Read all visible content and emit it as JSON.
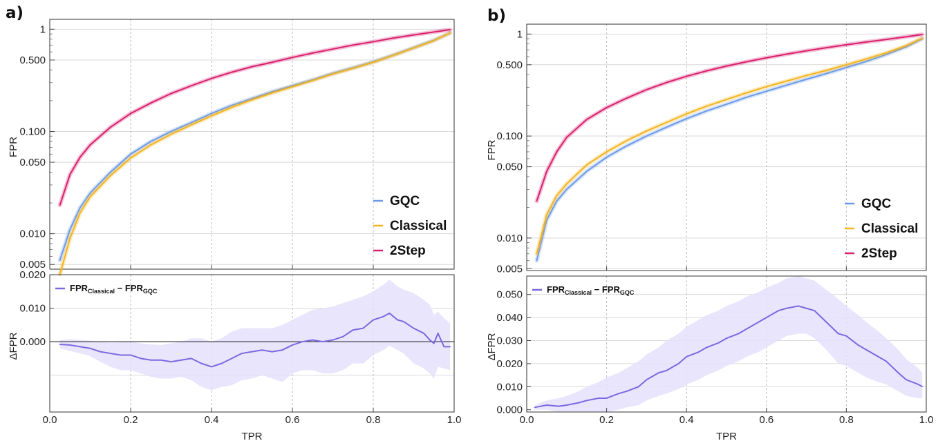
{
  "colors": {
    "gqc": "#6b9be8",
    "classical": "#f5b41e",
    "two_step": "#d9206e",
    "delta": "#7b68e0",
    "delta_band": "#e4e1fb"
  },
  "chart_data": [
    {
      "panel_label": "a)",
      "type": "line",
      "ylabel": "FPR",
      "xlabel": "",
      "xlim": [
        0.0,
        1.0
      ],
      "ylim": [
        0.0045,
        1.25
      ],
      "yscale": "log",
      "yticks": [
        "0.005",
        "0.010",
        "0.050",
        "0.100",
        "0.500",
        "1"
      ],
      "ytick_values": [
        0.005,
        0.01,
        0.05,
        0.1,
        0.5,
        1
      ],
      "grid": true,
      "legend_position": "bottom-right",
      "x": [
        0.025,
        0.05,
        0.075,
        0.1,
        0.15,
        0.2,
        0.25,
        0.3,
        0.35,
        0.4,
        0.45,
        0.5,
        0.55,
        0.6,
        0.65,
        0.7,
        0.75,
        0.8,
        0.85,
        0.9,
        0.95,
        0.99
      ],
      "series": [
        {
          "name": "GQC",
          "color_key": "gqc",
          "values": [
            0.0055,
            0.011,
            0.018,
            0.025,
            0.04,
            0.06,
            0.08,
            0.1,
            0.122,
            0.15,
            0.18,
            0.21,
            0.245,
            0.28,
            0.32,
            0.37,
            0.42,
            0.48,
            0.56,
            0.66,
            0.78,
            0.92
          ]
        },
        {
          "name": "Classical",
          "color_key": "classical",
          "values": [
            0.004,
            0.009,
            0.016,
            0.023,
            0.037,
            0.055,
            0.074,
            0.094,
            0.116,
            0.142,
            0.172,
            0.204,
            0.238,
            0.274,
            0.315,
            0.365,
            0.415,
            0.475,
            0.555,
            0.655,
            0.775,
            0.92
          ]
        },
        {
          "name": "2Step",
          "color_key": "two_step",
          "values": [
            0.019,
            0.038,
            0.056,
            0.074,
            0.11,
            0.15,
            0.19,
            0.235,
            0.28,
            0.33,
            0.38,
            0.43,
            0.475,
            0.53,
            0.585,
            0.64,
            0.7,
            0.755,
            0.82,
            0.88,
            0.94,
            0.99
          ]
        }
      ],
      "delta": {
        "type": "line",
        "ylabel": "ΔFPR",
        "xlabel": "TPR",
        "ylim": [
          -0.021,
          0.02
        ],
        "yticks": [
          "0.000",
          "0.010",
          "0.020"
        ],
        "ytick_values": [
          0.0,
          0.01,
          0.02
        ],
        "xticks": [
          "0.0",
          "0.2",
          "0.4",
          "0.6",
          "0.8",
          "1.0"
        ],
        "xtick_values": [
          0.0,
          0.2,
          0.4,
          0.6,
          0.8,
          1.0
        ],
        "legend_label_main": "FPR",
        "legend_label_sub1": "Classical",
        "legend_label_sep": " − FPR",
        "legend_label_sub2": "GQC",
        "x": [
          0.025,
          0.05,
          0.075,
          0.1,
          0.125,
          0.15,
          0.175,
          0.2,
          0.225,
          0.25,
          0.275,
          0.3,
          0.325,
          0.35,
          0.375,
          0.4,
          0.425,
          0.45,
          0.475,
          0.5,
          0.525,
          0.55,
          0.575,
          0.6,
          0.625,
          0.65,
          0.675,
          0.7,
          0.725,
          0.75,
          0.775,
          0.8,
          0.825,
          0.84,
          0.86,
          0.875,
          0.9,
          0.925,
          0.94,
          0.95,
          0.96,
          0.975,
          0.99
        ],
        "values": [
          -0.0008,
          -0.001,
          -0.0015,
          -0.002,
          -0.003,
          -0.0035,
          -0.004,
          -0.004,
          -0.005,
          -0.0055,
          -0.0055,
          -0.006,
          -0.0055,
          -0.005,
          -0.0065,
          -0.0075,
          -0.0065,
          -0.005,
          -0.0035,
          -0.003,
          -0.0025,
          -0.003,
          -0.0025,
          -0.001,
          0.0,
          0.0005,
          0.0,
          0.0005,
          0.0015,
          0.0035,
          0.004,
          0.0065,
          0.0075,
          0.0085,
          0.0065,
          0.006,
          0.004,
          0.0025,
          0.0005,
          -0.0005,
          0.0025,
          -0.0015,
          -0.0015
        ],
        "band_upper": [
          0.0005,
          0.0008,
          0.0005,
          0.0003,
          0.0,
          -0.0003,
          -0.0002,
          0.0,
          -0.0005,
          -0.0008,
          -0.001,
          -0.0005,
          0.0,
          0.001,
          0.001,
          0.0,
          0.001,
          0.003,
          0.004,
          0.004,
          0.004,
          0.004,
          0.005,
          0.0065,
          0.008,
          0.0095,
          0.01,
          0.0105,
          0.0115,
          0.0125,
          0.0135,
          0.015,
          0.017,
          0.0185,
          0.0165,
          0.0155,
          0.0145,
          0.0125,
          0.011,
          0.008,
          0.009,
          0.007,
          0.0055
        ],
        "band_lower": [
          -0.002,
          -0.0028,
          -0.0035,
          -0.0043,
          -0.006,
          -0.0075,
          -0.0085,
          -0.0085,
          -0.0095,
          -0.0105,
          -0.011,
          -0.011,
          -0.0105,
          -0.0115,
          -0.0135,
          -0.0145,
          -0.0135,
          -0.013,
          -0.0115,
          -0.011,
          -0.01,
          -0.011,
          -0.012,
          -0.0095,
          -0.0085,
          -0.0085,
          -0.0095,
          -0.0095,
          -0.0085,
          -0.0065,
          -0.0065,
          -0.004,
          -0.0025,
          -0.0012,
          -0.0025,
          -0.0035,
          -0.0065,
          -0.008,
          -0.0095,
          -0.011,
          -0.0075,
          -0.008,
          -0.0085
        ]
      }
    },
    {
      "panel_label": "b)",
      "type": "line",
      "ylabel": "FPR",
      "xlabel": "",
      "xlim": [
        0.0,
        1.0
      ],
      "ylim": [
        0.0048,
        1.25
      ],
      "yscale": "log",
      "yticks": [
        "0.005",
        "0.010",
        "0.050",
        "0.100",
        "0.500",
        "1"
      ],
      "ytick_values": [
        0.005,
        0.01,
        0.05,
        0.1,
        0.5,
        1
      ],
      "grid": true,
      "legend_position": "bottom-right",
      "x": [
        0.025,
        0.05,
        0.075,
        0.1,
        0.15,
        0.2,
        0.25,
        0.3,
        0.35,
        0.4,
        0.45,
        0.5,
        0.55,
        0.6,
        0.65,
        0.7,
        0.75,
        0.8,
        0.85,
        0.9,
        0.95,
        0.99
      ],
      "series": [
        {
          "name": "GQC",
          "color_key": "gqc",
          "values": [
            0.006,
            0.015,
            0.023,
            0.03,
            0.045,
            0.062,
            0.08,
            0.1,
            0.122,
            0.148,
            0.176,
            0.205,
            0.24,
            0.275,
            0.315,
            0.36,
            0.41,
            0.47,
            0.54,
            0.63,
            0.75,
            0.9
          ]
        },
        {
          "name": "Classical",
          "color_key": "classical",
          "values": [
            0.007,
            0.017,
            0.026,
            0.034,
            0.052,
            0.07,
            0.09,
            0.112,
            0.136,
            0.165,
            0.196,
            0.228,
            0.265,
            0.305,
            0.345,
            0.392,
            0.44,
            0.5,
            0.57,
            0.655,
            0.77,
            0.91
          ]
        },
        {
          "name": "2Step",
          "color_key": "two_step",
          "values": [
            0.023,
            0.045,
            0.07,
            0.097,
            0.145,
            0.19,
            0.235,
            0.285,
            0.335,
            0.385,
            0.435,
            0.485,
            0.535,
            0.585,
            0.635,
            0.685,
            0.735,
            0.785,
            0.835,
            0.885,
            0.94,
            0.99
          ]
        }
      ],
      "delta": {
        "type": "line",
        "ylabel": "ΔFPR",
        "xlabel": "TPR",
        "ylim": [
          -0.001,
          0.058
        ],
        "yticks": [
          "0.000",
          "0.010",
          "0.020",
          "0.030",
          "0.040",
          "0.050"
        ],
        "ytick_values": [
          0.0,
          0.01,
          0.02,
          0.03,
          0.04,
          0.05
        ],
        "xticks": [
          "0.0",
          "0.2",
          "0.4",
          "0.6",
          "0.8",
          "1.0"
        ],
        "xtick_values": [
          0.0,
          0.2,
          0.4,
          0.6,
          0.8,
          1.0
        ],
        "legend_label_main": "FPR",
        "legend_label_sub1": "Classical",
        "legend_label_sep": " − FPR",
        "legend_label_sub2": "GQC",
        "x": [
          0.02,
          0.05,
          0.08,
          0.1,
          0.13,
          0.15,
          0.18,
          0.2,
          0.23,
          0.25,
          0.28,
          0.3,
          0.33,
          0.35,
          0.38,
          0.4,
          0.43,
          0.45,
          0.48,
          0.5,
          0.53,
          0.55,
          0.58,
          0.6,
          0.63,
          0.65,
          0.68,
          0.7,
          0.72,
          0.75,
          0.78,
          0.8,
          0.83,
          0.85,
          0.88,
          0.9,
          0.93,
          0.95,
          0.98,
          0.99
        ],
        "values": [
          0.001,
          0.002,
          0.0015,
          0.002,
          0.003,
          0.004,
          0.005,
          0.005,
          0.007,
          0.008,
          0.01,
          0.013,
          0.016,
          0.017,
          0.02,
          0.023,
          0.025,
          0.027,
          0.029,
          0.031,
          0.033,
          0.035,
          0.038,
          0.04,
          0.043,
          0.044,
          0.045,
          0.044,
          0.043,
          0.038,
          0.033,
          0.032,
          0.028,
          0.026,
          0.023,
          0.021,
          0.016,
          0.013,
          0.011,
          0.01
        ],
        "band_upper": [
          0.002,
          0.004,
          0.005,
          0.006,
          0.008,
          0.01,
          0.012,
          0.014,
          0.016,
          0.018,
          0.021,
          0.024,
          0.027,
          0.03,
          0.033,
          0.036,
          0.039,
          0.041,
          0.043,
          0.045,
          0.047,
          0.049,
          0.051,
          0.053,
          0.055,
          0.057,
          0.058,
          0.057,
          0.056,
          0.052,
          0.048,
          0.045,
          0.041,
          0.038,
          0.034,
          0.031,
          0.026,
          0.022,
          0.018,
          0.016
        ],
        "band_lower": [
          0.0,
          0.0,
          -0.001,
          -0.001,
          -0.001,
          -0.001,
          -0.001,
          -0.001,
          0.0,
          0.001,
          0.002,
          0.004,
          0.006,
          0.007,
          0.009,
          0.011,
          0.013,
          0.015,
          0.017,
          0.019,
          0.021,
          0.023,
          0.025,
          0.027,
          0.03,
          0.032,
          0.033,
          0.033,
          0.031,
          0.026,
          0.02,
          0.019,
          0.016,
          0.014,
          0.012,
          0.011,
          0.008,
          0.006,
          0.005,
          0.005
        ]
      }
    }
  ]
}
